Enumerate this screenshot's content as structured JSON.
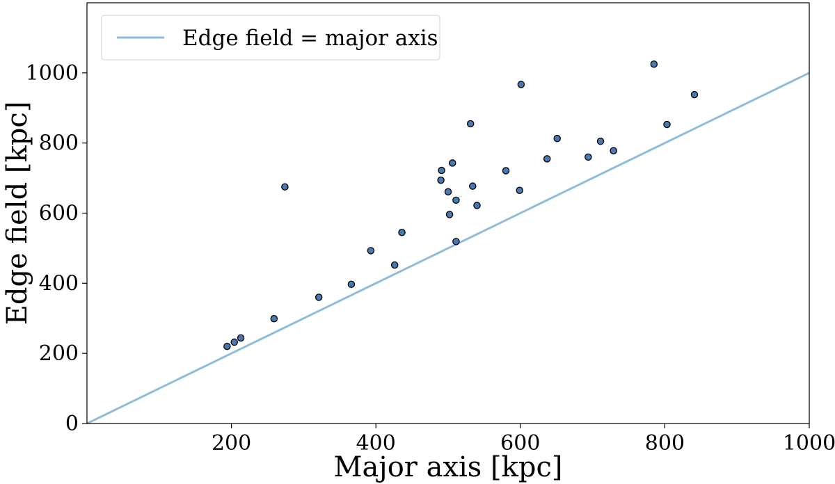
{
  "chart_data": {
    "type": "scatter",
    "xlabel": "Major axis [kpc]",
    "ylabel": "Edge field [kpc]",
    "xlim": [
      0,
      1000
    ],
    "ylim": [
      0,
      1200
    ],
    "xticks": [
      200,
      400,
      600,
      800,
      1000
    ],
    "yticks": [
      0,
      200,
      400,
      600,
      800,
      1000
    ],
    "grid": false,
    "legend_position": "top-left",
    "colors": {
      "line": "#8fbcd8",
      "marker_fill": "#4a78b0",
      "marker_edge": "#000000"
    },
    "series": [
      {
        "kind": "line",
        "name": "Edge field = major axis",
        "x": [
          0,
          1000
        ],
        "y": [
          0,
          1000
        ]
      },
      {
        "kind": "scatter",
        "x": [
          194,
          204,
          213,
          259,
          274,
          321,
          366,
          393,
          426,
          436,
          490,
          491,
          500,
          502,
          506,
          511,
          511,
          531,
          534,
          540,
          580,
          599,
          601,
          637,
          651,
          694,
          711,
          729,
          785,
          803,
          841
        ],
        "y": [
          220,
          232,
          244,
          299,
          675,
          360,
          397,
          493,
          452,
          545,
          694,
          722,
          661,
          596,
          743,
          637,
          519,
          855,
          677,
          622,
          721,
          665,
          967,
          755,
          813,
          760,
          805,
          778,
          1025,
          853,
          938
        ]
      }
    ]
  }
}
